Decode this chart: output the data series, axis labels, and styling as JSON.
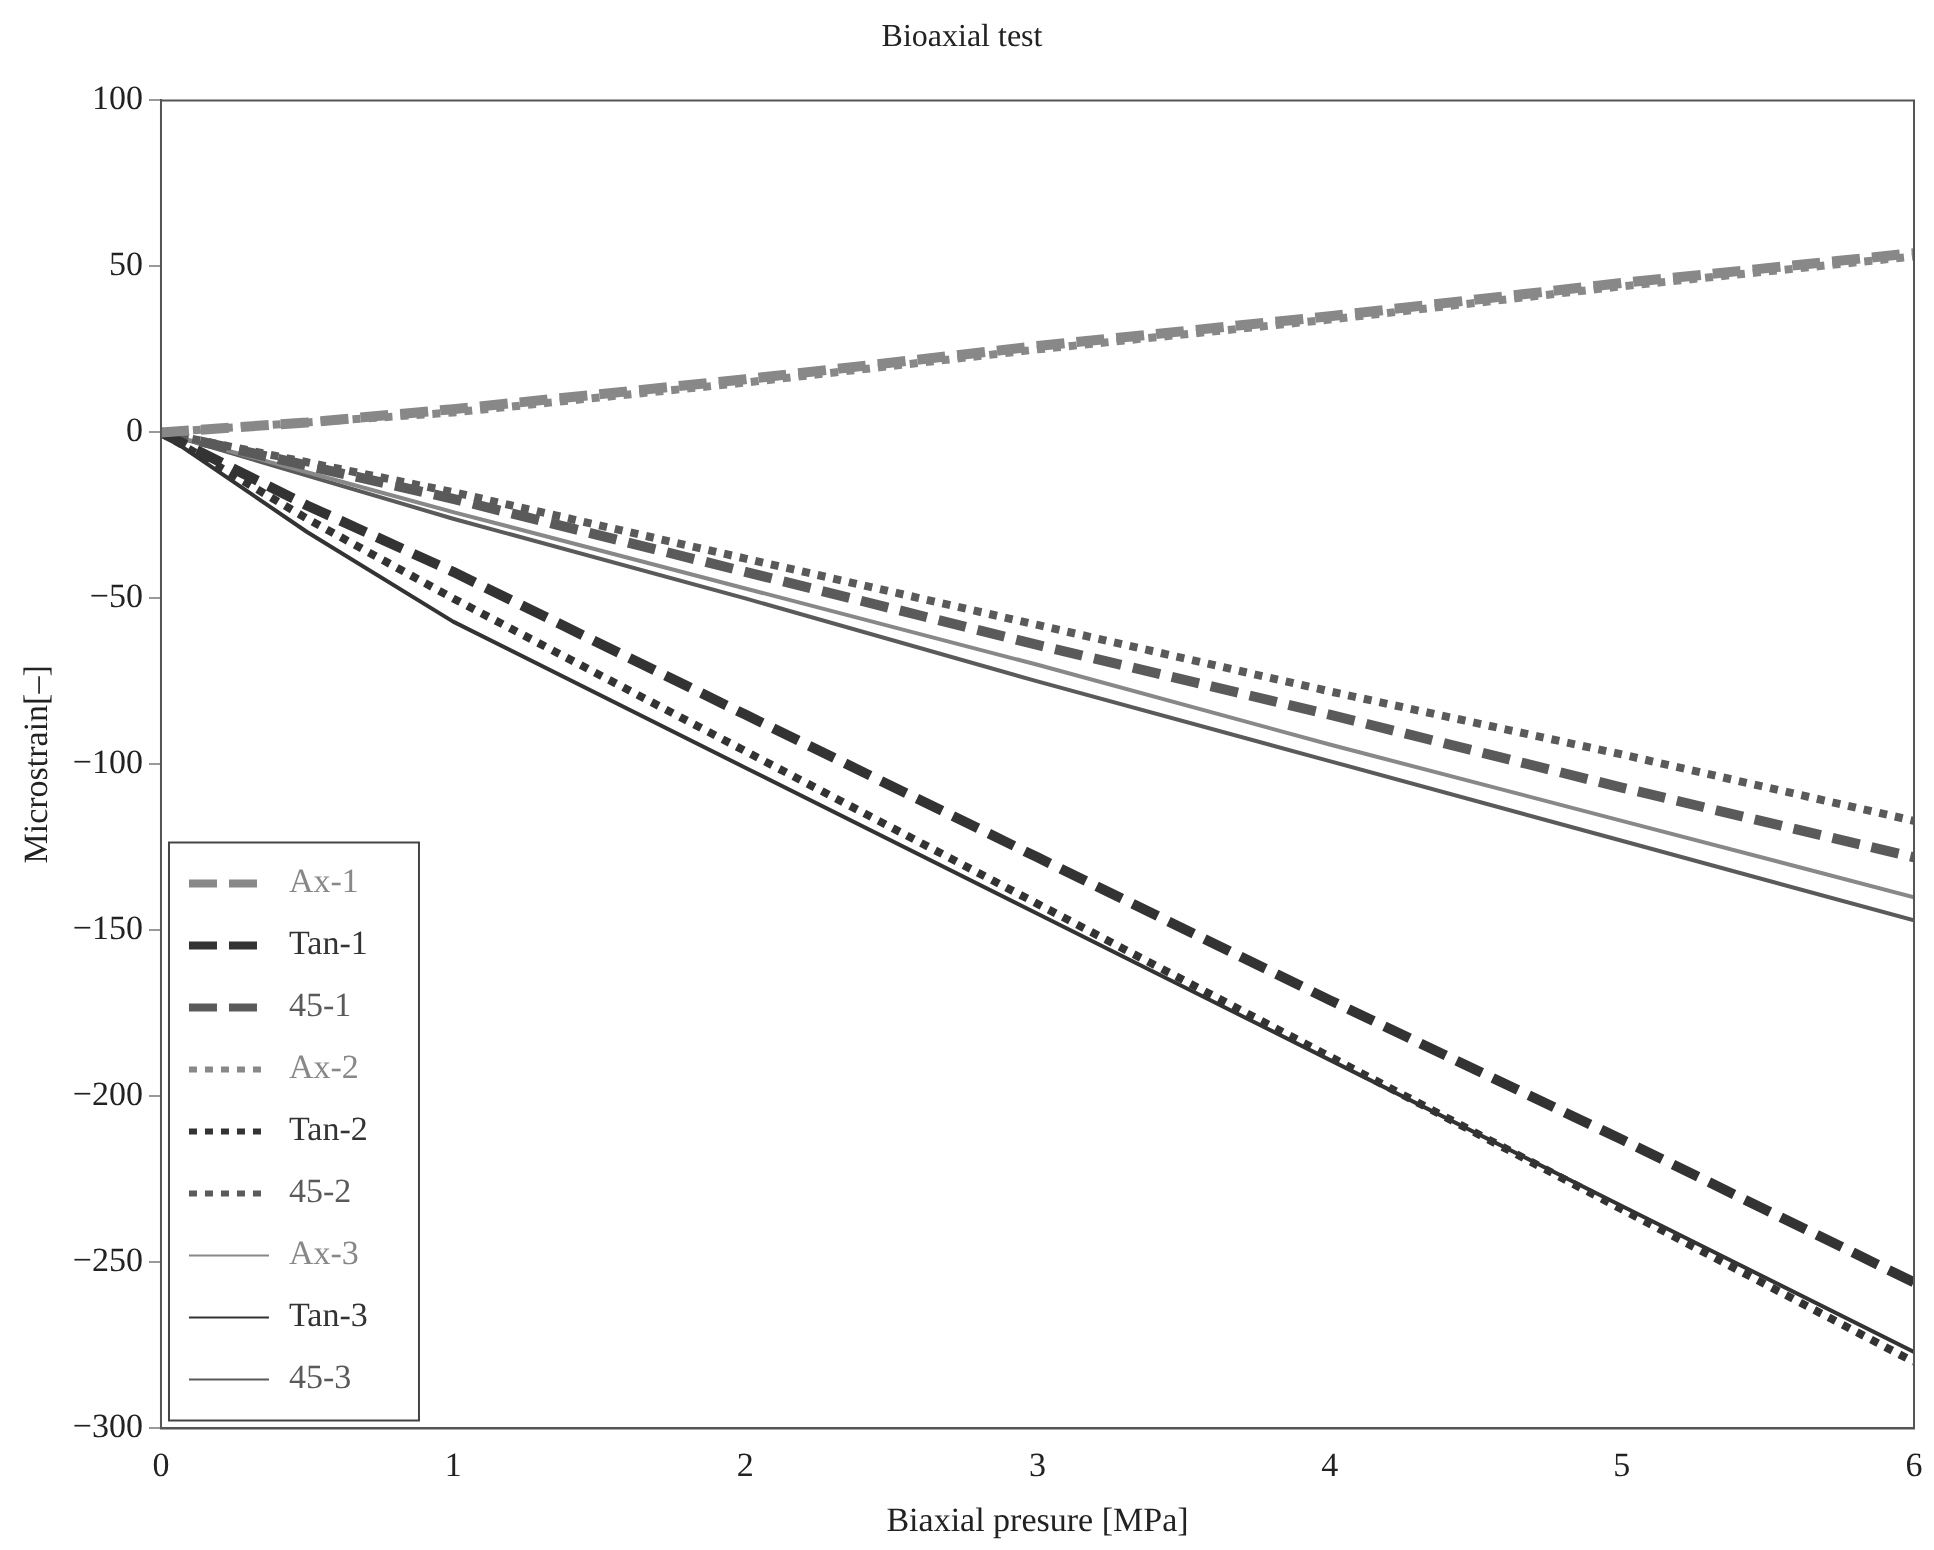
{
  "chart_data": {
    "type": "line",
    "title": "Bioaxial test",
    "xlabel": "Biaxial presure [MPa]",
    "ylabel": "Microstrain[–]",
    "x": [
      0,
      0.5,
      1,
      2,
      3,
      4,
      5,
      6
    ],
    "xlim": [
      0,
      6
    ],
    "xticks": [
      0,
      1,
      2,
      3,
      4,
      5,
      6
    ],
    "ylim": [
      -300,
      100
    ],
    "yticks": [
      {
        "value": -300,
        "label": "−300"
      },
      {
        "value": -250,
        "label": "−250"
      },
      {
        "value": -200,
        "label": "−200"
      },
      {
        "value": -150,
        "label": "−150"
      },
      {
        "value": -100,
        "label": "−100"
      },
      {
        "value": -50,
        "label": "−50"
      },
      0,
      50,
      100
    ],
    "grid": false,
    "legend": "bottom left",
    "marker": "none",
    "series": [
      {
        "name": "Ax-1",
        "color": "#888888",
        "line_style": "dashed",
        "values": [
          0,
          3,
          7,
          16,
          26,
          35,
          45,
          54
        ]
      },
      {
        "name": "Tan-1",
        "color": "#333333",
        "line_style": "dashed",
        "values": [
          0,
          -22,
          -42,
          -85,
          -128,
          -171,
          -213,
          -256
        ]
      },
      {
        "name": "45-1",
        "color": "#5a5a5a",
        "line_style": "dashed",
        "values": [
          0,
          -10,
          -20,
          -42,
          -64,
          -85,
          -107,
          -128
        ]
      },
      {
        "name": "Ax-2",
        "color": "#888888",
        "line_style": "dotted",
        "values": [
          0,
          3,
          6,
          15,
          25,
          34,
          44,
          53
        ]
      },
      {
        "name": "Tan-2",
        "color": "#333333",
        "line_style": "dotted",
        "values": [
          0,
          -26,
          -50,
          -96,
          -142,
          -188,
          -234,
          -280
        ]
      },
      {
        "name": "45-2",
        "color": "#5a5a5a",
        "line_style": "dotted",
        "values": [
          0,
          -9,
          -18,
          -38,
          -58,
          -78,
          -97,
          -117
        ]
      },
      {
        "name": "Ax-3",
        "color": "#888888",
        "line_style": "solid",
        "values": [
          0,
          -12,
          -24,
          -47,
          -70,
          -94,
          -117,
          -140
        ]
      },
      {
        "name": "Tan-3",
        "color": "#333333",
        "line_style": "solid",
        "values": [
          0,
          -30,
          -57,
          -101,
          -145,
          -189,
          -233,
          -277
        ]
      },
      {
        "name": "45-3",
        "color": "#5a5a5a",
        "line_style": "solid",
        "values": [
          0,
          -13,
          -26,
          -50,
          -75,
          -99,
          -123,
          -147
        ]
      }
    ]
  }
}
